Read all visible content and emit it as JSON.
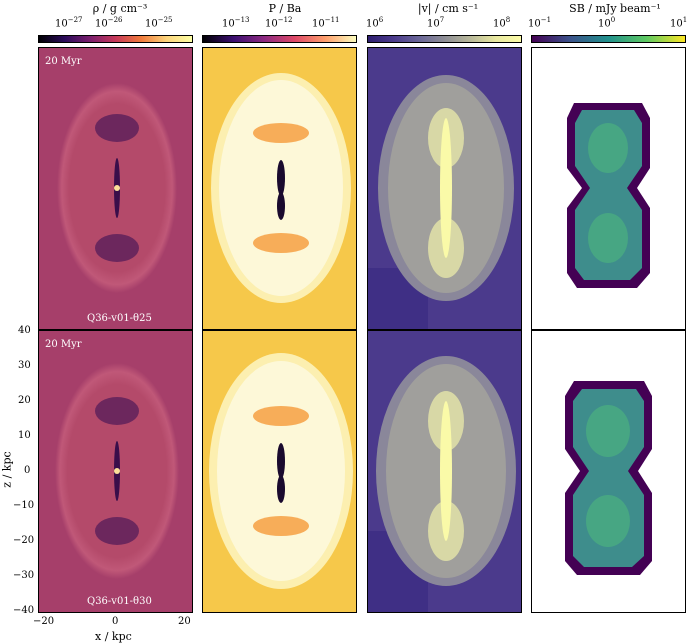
{
  "colorbars": [
    {
      "label": "ρ / g cm⁻³",
      "ticks": [
        "10",
        "10",
        "10"
      ],
      "exps": [
        "−27",
        "−26",
        "−25"
      ],
      "gradient": "inferno"
    },
    {
      "label": "P / Ba",
      "ticks": [
        "10",
        "10",
        "10"
      ],
      "exps": [
        "−13",
        "−12",
        "−11"
      ],
      "gradient": "inferno"
    },
    {
      "label": "|v| / cm s⁻¹",
      "ticks": [
        "10",
        "10",
        "10"
      ],
      "exps": [
        "6",
        "7",
        "8"
      ],
      "gradient": "plasma"
    },
    {
      "label": "SB / mJy beam⁻¹",
      "ticks": [
        "10",
        "10",
        "10"
      ],
      "exps": [
        "−1",
        "0",
        "1"
      ],
      "gradient": "viridis"
    }
  ],
  "rows": [
    {
      "time": "20 Myr",
      "model": "Q36-v01-θ25"
    },
    {
      "time": "20 Myr",
      "model": "Q36-v01-θ30"
    }
  ],
  "yaxis": {
    "title": "z / kpc",
    "ticks": [
      "40",
      "30",
      "20",
      "10",
      "0",
      "−10",
      "−20",
      "−30",
      "−40"
    ]
  },
  "xaxis": {
    "title": "x / kpc",
    "ticks": [
      "−20",
      "0",
      "20"
    ]
  },
  "colors": {
    "density_bg": "#a63f6a",
    "pressure_bg": "#f6c84a",
    "velocity_bg": "#4b3a8c",
    "sb_bg": "#ffffff"
  }
}
